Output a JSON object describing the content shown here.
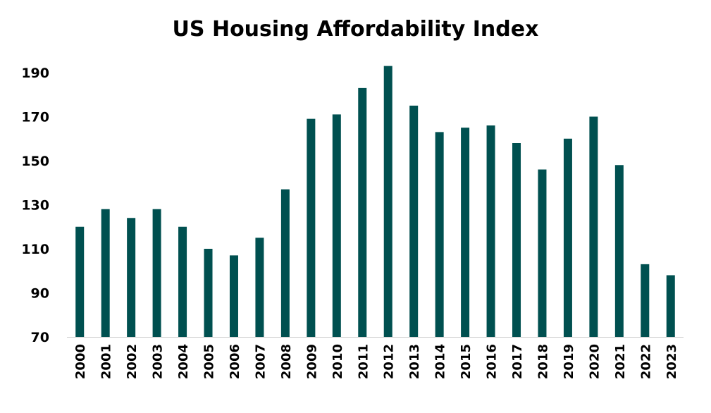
{
  "chart_data": {
    "type": "bar",
    "title": "US Housing Affordability Index",
    "xlabel": "",
    "ylabel": "",
    "categories": [
      "2000",
      "2001",
      "2002",
      "2003",
      "2004",
      "2005",
      "2006",
      "2007",
      "2008",
      "2009",
      "2010",
      "2011",
      "2012",
      "2013",
      "2014",
      "2015",
      "2016",
      "2017",
      "2018",
      "2019",
      "2020",
      "2021",
      "2022",
      "2023"
    ],
    "values": [
      120,
      128,
      124,
      128,
      120,
      110,
      107,
      115,
      137,
      169,
      171,
      183,
      193,
      175,
      163,
      165,
      166,
      158,
      146,
      160,
      170,
      148,
      103,
      98
    ],
    "ylim": [
      70,
      190
    ],
    "yticks": [
      70,
      90,
      110,
      130,
      150,
      170,
      190
    ],
    "grid": false,
    "bar_color": "#005050"
  }
}
